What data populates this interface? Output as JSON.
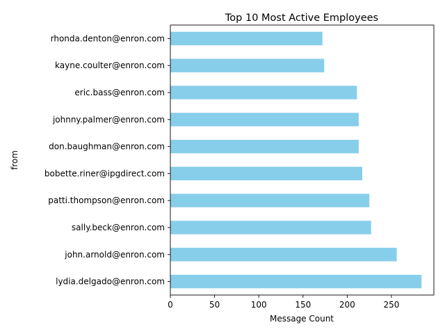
{
  "chart_data": {
    "type": "bar",
    "orientation": "horizontal",
    "title": "Top 10 Most Active Employees",
    "xlabel": "Message Count",
    "ylabel": "from",
    "categories": [
      "lydia.delgado@enron.com",
      "john.arnold@enron.com",
      "sally.beck@enron.com",
      "patti.thompson@enron.com",
      "bobette.riner@ipgdirect.com",
      "don.baughman@enron.com",
      "johnny.palmer@enron.com",
      "eric.bass@enron.com",
      "kayne.coulter@enron.com",
      "rhonda.denton@enron.com"
    ],
    "values": [
      284,
      256,
      227,
      225,
      217,
      213,
      213,
      211,
      174,
      172
    ],
    "xlim": [
      0,
      298
    ],
    "xticks": [
      0,
      50,
      100,
      150,
      200,
      250
    ],
    "bar_color": "#87ceeb",
    "grid": false,
    "legend": "none"
  }
}
